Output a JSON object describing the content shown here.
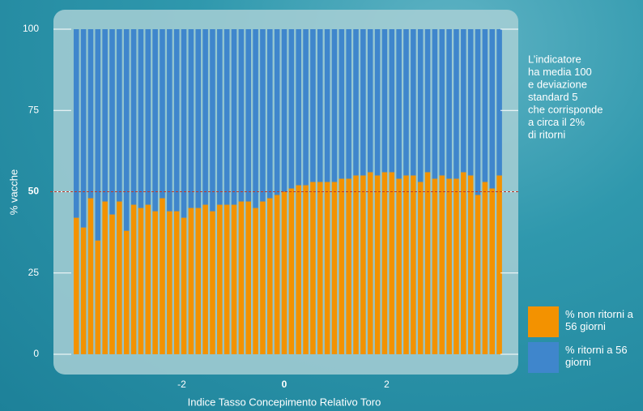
{
  "chart_data": {
    "type": "stacked_bar",
    "x_label": "Indice Tasso Concepimento Relativo Toro",
    "y_label": "% vacche",
    "x": [
      -4.06,
      -3.92,
      -3.78,
      -3.64,
      -3.5,
      -3.36,
      -3.22,
      -3.08,
      -2.94,
      -2.8,
      -2.66,
      -2.52,
      -2.38,
      -2.24,
      -2.1,
      -1.96,
      -1.82,
      -1.68,
      -1.54,
      -1.4,
      -1.26,
      -1.12,
      -0.98,
      -0.84,
      -0.7,
      -0.56,
      -0.42,
      -0.28,
      -0.14,
      0,
      0.14,
      0.28,
      0.42,
      0.56,
      0.7,
      0.84,
      0.98,
      1.12,
      1.26,
      1.4,
      1.54,
      1.68,
      1.82,
      1.96,
      2.1,
      2.24,
      2.38,
      2.52,
      2.66,
      2.8,
      2.94,
      3.08,
      3.22,
      3.36,
      3.5,
      3.64,
      3.78,
      3.92,
      4.06,
      4.2
    ],
    "series": [
      {
        "name": "% non ritorni a 56 giorni",
        "color": "#f39200",
        "values": [
          42,
          39,
          48,
          35,
          47,
          43,
          47,
          38,
          46,
          45,
          46,
          44,
          48,
          44,
          44,
          42,
          45,
          45,
          46,
          44,
          46,
          46,
          46,
          47,
          47,
          45,
          47,
          48,
          49,
          50,
          51,
          52,
          52,
          53,
          53,
          53,
          53,
          54,
          54,
          55,
          55,
          56,
          55,
          56,
          56,
          54,
          55,
          55,
          53,
          56,
          54,
          55,
          54,
          54,
          56,
          55,
          49,
          53,
          51,
          55
        ]
      },
      {
        "name": "% ritorni a 56 giorni",
        "color": "#3f86cc",
        "values": [
          58,
          61,
          52,
          65,
          53,
          57,
          53,
          62,
          54,
          55,
          54,
          56,
          52,
          56,
          56,
          58,
          55,
          55,
          54,
          56,
          54,
          54,
          54,
          53,
          53,
          55,
          53,
          52,
          51,
          50,
          49,
          48,
          48,
          47,
          47,
          47,
          47,
          46,
          46,
          45,
          45,
          44,
          45,
          44,
          44,
          46,
          45,
          45,
          47,
          44,
          46,
          45,
          46,
          46,
          44,
          45,
          51,
          47,
          49,
          45
        ]
      }
    ],
    "xlim": [
      -4.57,
      4.57
    ],
    "xticks": [
      -2,
      0,
      2
    ],
    "ylim": [
      0,
      100
    ],
    "yticks": [
      0,
      25,
      50,
      75,
      100
    ],
    "reference_line": 50,
    "reference_color": "#c0392b",
    "annotation": [
      "L’indicatore",
      "ha media 100",
      "e deviazione",
      "standard 5",
      "che corrisponde",
      "a circa il 2%",
      "di ritorni"
    ]
  }
}
